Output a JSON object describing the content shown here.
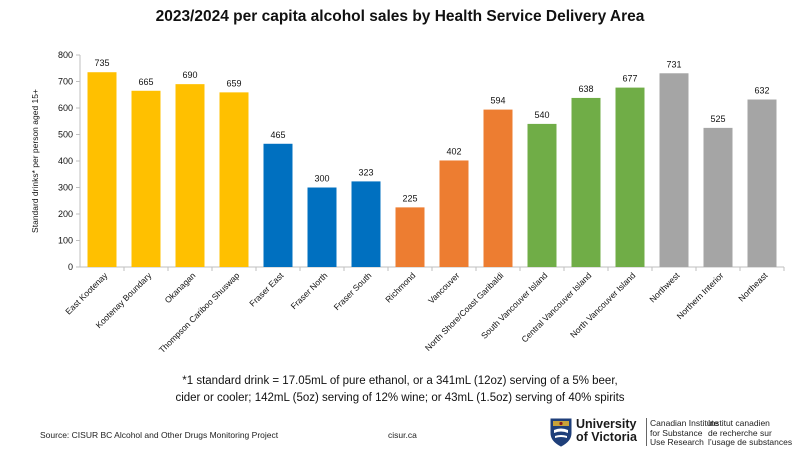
{
  "chart_data": {
    "type": "bar",
    "title": "2023/2024 per capita alcohol sales by Health Service Delivery Area",
    "ylabel": "Standard drinks* per person aged 15+",
    "ylim": [
      0,
      800
    ],
    "yticks": [
      0,
      100,
      200,
      300,
      400,
      500,
      600,
      700,
      800
    ],
    "grid": false,
    "categories": [
      "East Kootenay",
      "Kootenay Boundary",
      "Okanagan",
      "Thompson Cariboo Shuswap",
      "Fraser East",
      "Fraser North",
      "Fraser South",
      "Richmond",
      "Vancouver",
      "North Shore/Coast Garibaldi",
      "South Vancouver Island",
      "Central Vancouver Island",
      "North Vancouver Island",
      "Northwest",
      "Northern Interior",
      "Northeast"
    ],
    "values": [
      735,
      665,
      690,
      659,
      465,
      300,
      323,
      225,
      402,
      594,
      540,
      638,
      677,
      731,
      525,
      632
    ],
    "bar_colors": [
      "#FFC000",
      "#FFC000",
      "#FFC000",
      "#FFC000",
      "#0070C0",
      "#0070C0",
      "#0070C0",
      "#ED7D31",
      "#ED7D31",
      "#ED7D31",
      "#70AD47",
      "#70AD47",
      "#70AD47",
      "#A5A5A5",
      "#A5A5A5",
      "#A5A5A5"
    ]
  },
  "footnote": {
    "line1": "*1 standard drink = 17.05mL of pure ethanol, or a 341mL (12oz) serving of a 5% beer,",
    "line2": "cider or cooler; 142mL (5oz) serving of 12% wine; or 43mL (1.5oz) serving of 40% spirits"
  },
  "source": "Source: CISUR BC Alcohol and Other Drugs Monitoring Project",
  "website": "cisur.ca",
  "logo": {
    "uvic_line1": "University",
    "uvic_line2": "of Victoria",
    "en_line1": "Canadian Institute",
    "en_line2": "for Substance",
    "en_line3": "Use Research",
    "fr_line1": "Institut canadien",
    "fr_line2": "de recherche sur",
    "fr_line3": "l’usage de substances"
  }
}
